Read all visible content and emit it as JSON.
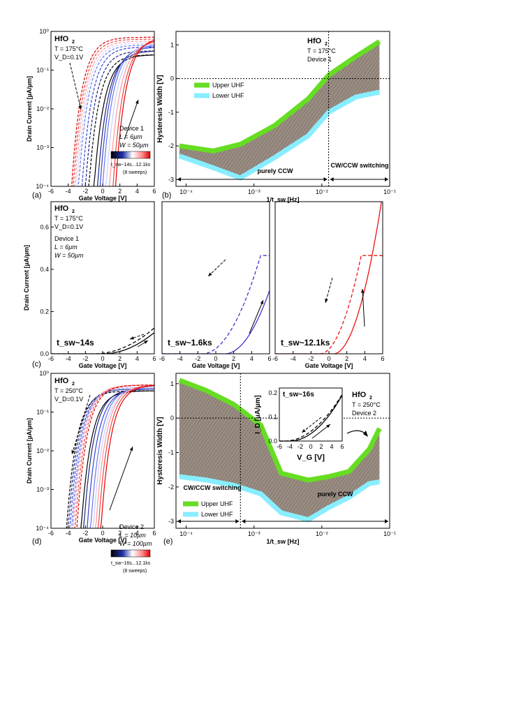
{
  "chart_data": [
    {
      "panel": "a",
      "type": "line",
      "scale_y": "log",
      "material": "HfO",
      "material_sub": "2",
      "conditions": [
        "T = 175°C",
        "V_D=0.1V"
      ],
      "device": [
        "Device 1",
        "L = 6µm",
        "W = 50µm"
      ],
      "xlabel": "Gate Voltage [V]",
      "ylabel": "Drain Current [µA/µm]",
      "x_ticks": [
        "-6",
        "-4",
        "-2",
        "0",
        "2",
        "4",
        "6"
      ],
      "y_ticks": [
        "10⁻⁴",
        "10⁻³",
        "10⁻²",
        "10⁻¹",
        "10⁰"
      ],
      "xlim": [
        -6,
        6
      ],
      "ylim_log10": [
        -4,
        0
      ],
      "colorbar_label": "t_sw~14s...12.1ks",
      "sweeps_note": "(8 sweeps)",
      "sweep_colors": [
        "#000000",
        "#1a237e",
        "#3344cc",
        "#6677ee",
        "#ccccff",
        "#ff9999",
        "#ee4444",
        "#dd0000"
      ],
      "up_thresholds": [
        -1.0,
        -0.6,
        -0.3,
        0.0,
        0.4,
        0.8,
        1.2,
        1.5
      ],
      "down_thresholds": [
        -1.6,
        -2.0,
        -2.4,
        -2.8,
        -3.0,
        -3.2,
        -3.4,
        -3.6
      ],
      "sat_log10": [
        -0.6,
        -0.5,
        -0.4,
        -0.35,
        -0.3,
        -0.25,
        -0.2,
        -0.15
      ]
    },
    {
      "panel": "b",
      "type": "area",
      "scale_x": "log",
      "material": "HfO",
      "material_sub": "2",
      "conditions": [
        "T = 175°C",
        "Device 1"
      ],
      "xlabel": "1/t_sw [Hz]",
      "ylabel": "Hysteresis Width [V]",
      "x_ticks": [
        "10⁻⁴",
        "10⁻³",
        "10⁻²",
        "10⁻¹"
      ],
      "y_ticks": [
        "-3",
        "-2",
        "-1",
        "0",
        "1"
      ],
      "xlim_log10": [
        -4.15,
        -1.0
      ],
      "ylim": [
        -3.2,
        1.4
      ],
      "series": [
        {
          "name": "Upper UHF",
          "color": "#66dd22",
          "log10x": [
            -4.1,
            -3.6,
            -3.2,
            -2.7,
            -2.2,
            -1.9,
            -1.5,
            -1.15
          ],
          "y": [
            -2.0,
            -2.15,
            -1.95,
            -1.4,
            -0.6,
            0.1,
            0.65,
            1.1
          ]
        },
        {
          "name": "Lower UHF",
          "color": "#88eeff",
          "log10x": [
            -4.1,
            -3.6,
            -3.2,
            -2.7,
            -2.2,
            -1.9,
            -1.5,
            -1.15
          ],
          "y": [
            -2.3,
            -2.65,
            -2.95,
            -2.35,
            -1.7,
            -1.0,
            -0.55,
            -0.4
          ]
        }
      ],
      "regions": [
        {
          "label": "purely CCW",
          "from_log10": -4.15,
          "to_log10": -1.9
        },
        {
          "label": "CW/CCW switching",
          "from_log10": -1.9,
          "to_log10": -1.0
        }
      ],
      "vline_log10": -1.9
    },
    {
      "panel": "c",
      "type": "line",
      "material": "HfO",
      "material_sub": "2",
      "conditions": [
        "T = 175°C",
        "V_D=0.1V"
      ],
      "device": [
        "Device 1",
        "L = 6µm",
        "W = 50µm"
      ],
      "xlabel": "Gate Voltage [V]",
      "ylabel": "Drain Current [µA/µm]",
      "x_ticks": [
        "-6",
        "-4",
        "-2",
        "0",
        "2",
        "4",
        "6"
      ],
      "y_ticks": [
        "0.0",
        "0.2",
        "0.4",
        "0.6"
      ],
      "xlim": [
        -6,
        6
      ],
      "ylim": [
        0,
        0.72
      ],
      "subpanels": [
        {
          "label": "t_sw~14s",
          "color": "#000000",
          "up": {
            "v0": 0.0,
            "k": 0.0028
          },
          "down": {
            "v0": -1.0,
            "k": 0.0025
          }
        },
        {
          "label": "t_sw~1.6ks",
          "color": "#4433cc",
          "up": {
            "v0": 1.0,
            "k": 0.012
          },
          "down": {
            "v0": -1.5,
            "k": 0.011
          }
        },
        {
          "label": "t_sw~12.1ks",
          "color": "#ee1111",
          "up": {
            "v0": 0.5,
            "k": 0.025
          },
          "down": {
            "v0": -1.0,
            "k": 0.022
          }
        }
      ]
    },
    {
      "panel": "d",
      "type": "line",
      "scale_y": "log",
      "material": "HfO",
      "material_sub": "2",
      "conditions": [
        "T = 250°C",
        "V_D=0.1V"
      ],
      "device": [
        "Device 2",
        "L = 10µm",
        "W = 100µm"
      ],
      "xlabel": "Gate Voltage [V]",
      "ylabel": "Drain Current [µA/µm]",
      "x_ticks": [
        "-6",
        "-4",
        "-2",
        "0",
        "2",
        "4",
        "6"
      ],
      "y_ticks": [
        "10⁻⁴",
        "10⁻³",
        "10⁻²",
        "10⁻¹",
        "10⁰"
      ],
      "xlim": [
        -6,
        6
      ],
      "ylim_log10": [
        -4,
        0
      ],
      "colorbar_label": "t_sw~16s...12.1ks",
      "sweeps_note": "(8 sweeps)",
      "sweep_colors": [
        "#000000",
        "#1a237e",
        "#3344cc",
        "#6677ee",
        "#ccccff",
        "#ff9999",
        "#ee4444",
        "#dd0000"
      ],
      "up_thresholds": [
        -2.5,
        -2.2,
        -1.8,
        -1.4,
        -1.1,
        -0.8,
        -0.5,
        -0.2
      ],
      "down_thresholds": [
        -4.2,
        -4.0,
        -3.8,
        -3.6,
        -3.5,
        -3.4,
        -3.2,
        -3.0
      ],
      "sat_log10": [
        -0.45,
        -0.4,
        -0.4,
        -0.35,
        -0.35,
        -0.3,
        -0.3,
        -0.3
      ]
    },
    {
      "panel": "e",
      "type": "area",
      "scale_x": "log",
      "material": "HfO",
      "material_sub": "2",
      "conditions": [
        "T = 250°C",
        "Device 2"
      ],
      "xlabel": "1/t_sw [Hz]",
      "ylabel": "Hysteresis Width [V]",
      "x_ticks": [
        "10⁻⁴",
        "10⁻³",
        "10⁻²",
        "10⁻¹"
      ],
      "y_ticks": [
        "-3",
        "-2",
        "-1",
        "0",
        "1"
      ],
      "xlim_log10": [
        -4.15,
        -1.0
      ],
      "ylim": [
        -3.2,
        1.3
      ],
      "series": [
        {
          "name": "Upper UHF",
          "color": "#66dd22",
          "log10x": [
            -4.1,
            -3.7,
            -3.3,
            -2.9,
            -2.6,
            -2.2,
            -1.9,
            -1.6,
            -1.3,
            -1.15
          ],
          "y": [
            1.1,
            0.8,
            0.4,
            -0.2,
            -1.6,
            -1.8,
            -1.7,
            -1.55,
            -0.9,
            -0.3
          ]
        },
        {
          "name": "Lower UHF",
          "color": "#88eeff",
          "log10x": [
            -4.1,
            -3.7,
            -3.3,
            -2.9,
            -2.6,
            -2.2,
            -1.9,
            -1.6,
            -1.3,
            -1.15
          ],
          "y": [
            -1.7,
            -1.8,
            -1.95,
            -2.2,
            -2.75,
            -2.95,
            -2.6,
            -2.3,
            -1.9,
            -1.85
          ]
        }
      ],
      "regions": [
        {
          "label": "CW/CCW switching",
          "from_log10": -4.15,
          "to_log10": -3.2
        },
        {
          "label": "purely CCW",
          "from_log10": -3.2,
          "to_log10": -1.0
        }
      ],
      "vline_log10": -3.2,
      "inset": {
        "label": "t_sw~16s",
        "xlabel": "V_G [V]",
        "ylabel": "I_D [µA/µm]",
        "x_ticks": [
          "-6",
          "-4",
          "-2",
          "0",
          "2",
          "4",
          "6"
        ],
        "y_ticks": [
          "0.0",
          "0.1",
          "0.2"
        ],
        "xlim": [
          -6,
          6
        ],
        "ylim": [
          0,
          0.22
        ]
      }
    }
  ],
  "panel_labels": [
    "(a)",
    "(b)",
    "(c)",
    "(d)",
    "(e)"
  ]
}
